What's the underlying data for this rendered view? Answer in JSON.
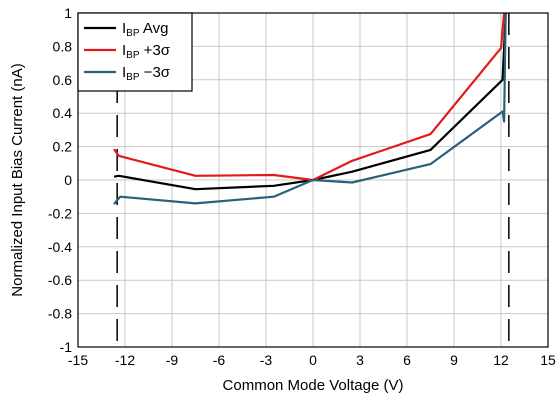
{
  "chart_data": {
    "type": "line",
    "xlabel": "Common Mode Voltage (V)",
    "ylabel": "Normalized Input Bias Current (nA)",
    "xlim": [
      -15,
      15
    ],
    "ylim": [
      -1,
      1
    ],
    "x_ticks": [
      "-15",
      "-12",
      "-9",
      "-6",
      "-3",
      "0",
      "3",
      "6",
      "9",
      "12",
      "15"
    ],
    "y_ticks": [
      "1",
      "0.8",
      "0.6",
      "0.4",
      "0.2",
      "0",
      "-0.2",
      "-0.4",
      "-0.6",
      "-0.8",
      "-1"
    ],
    "grid": true,
    "legend_position": "top-left",
    "series": [
      {
        "name": "I_BP Avg",
        "legend_main": "I",
        "legend_sub": "BP",
        "legend_rest": " Avg",
        "color": "#000000",
        "points": [
          [
            -12.7,
            0.02
          ],
          [
            -12.4,
            0.025
          ],
          [
            -7.5,
            -0.055
          ],
          [
            -2.5,
            -0.035
          ],
          [
            0,
            0
          ],
          [
            2.5,
            0.05
          ],
          [
            7.5,
            0.18
          ],
          [
            12.1,
            0.6
          ],
          [
            12.3,
            1.0
          ]
        ]
      },
      {
        "name": "I_BP +3σ",
        "legend_main": "I",
        "legend_sub": "BP",
        "legend_rest": " +3σ",
        "color": "#e31a1c",
        "points": [
          [
            -12.7,
            0.185
          ],
          [
            -12.4,
            0.145
          ],
          [
            -7.5,
            0.025
          ],
          [
            -2.5,
            0.03
          ],
          [
            0,
            0
          ],
          [
            2.5,
            0.115
          ],
          [
            7.5,
            0.275
          ],
          [
            12.0,
            0.79
          ],
          [
            12.2,
            1.0
          ]
        ]
      },
      {
        "name": "I_BP −3σ",
        "legend_main": "I",
        "legend_sub": "BP",
        "legend_rest": " −3σ",
        "color": "#2c5f7a",
        "points": [
          [
            -12.7,
            -0.145
          ],
          [
            -12.5,
            -0.12
          ],
          [
            -12.3,
            -0.1
          ],
          [
            -7.5,
            -0.14
          ],
          [
            -2.5,
            -0.1
          ],
          [
            0,
            0
          ],
          [
            2.5,
            -0.015
          ],
          [
            7.5,
            0.095
          ],
          [
            12.1,
            0.41
          ],
          [
            12.2,
            0.35
          ],
          [
            12.3,
            1.0
          ]
        ]
      }
    ],
    "reference_lines": [
      {
        "x": -12.5,
        "style": "dashed",
        "color": "#000000"
      },
      {
        "x": 12.5,
        "style": "dashed",
        "color": "#000000"
      }
    ]
  }
}
